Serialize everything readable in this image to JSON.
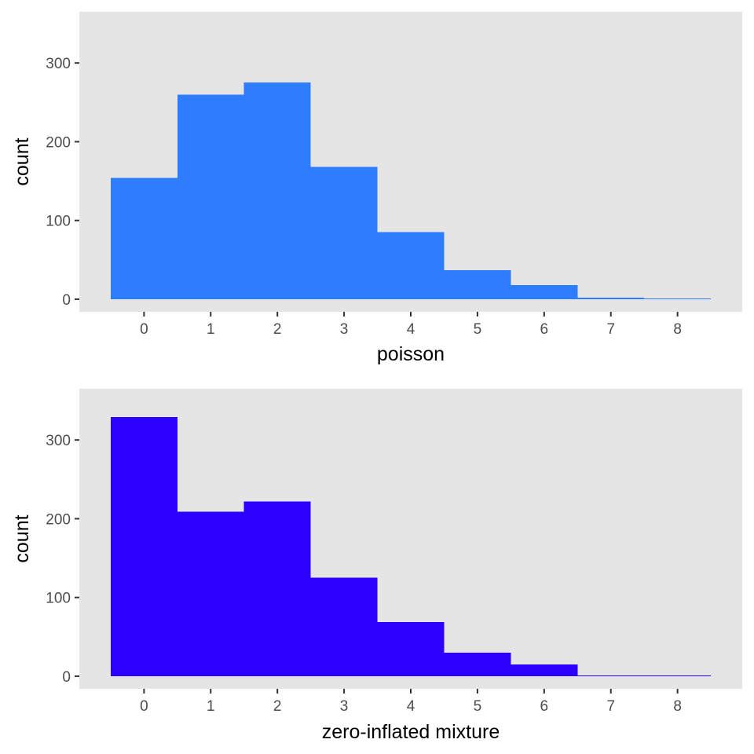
{
  "chart_data": [
    {
      "type": "bar",
      "categories": [
        "0",
        "1",
        "2",
        "3",
        "4",
        "5",
        "6",
        "7",
        "8"
      ],
      "values": [
        154,
        260,
        275,
        168,
        85,
        37,
        18,
        2,
        1
      ],
      "title": "",
      "xlabel": "poisson",
      "ylabel": "count",
      "ylim": [
        -16,
        365
      ],
      "yticks": [
        0,
        100,
        200,
        300
      ],
      "xticks": [
        "0",
        "1",
        "2",
        "3",
        "4",
        "5",
        "6",
        "7",
        "8"
      ],
      "bar_color": "#2e7dff",
      "grid": false,
      "legend": "none"
    },
    {
      "type": "bar",
      "categories": [
        "0",
        "1",
        "2",
        "3",
        "4",
        "5",
        "6",
        "7",
        "8"
      ],
      "values": [
        329,
        209,
        222,
        125,
        69,
        30,
        15,
        1,
        1
      ],
      "title": "",
      "xlabel": "zero-inflated mixture",
      "ylabel": "count",
      "ylim": [
        -16,
        365
      ],
      "yticks": [
        0,
        100,
        200,
        300
      ],
      "xticks": [
        "0",
        "1",
        "2",
        "3",
        "4",
        "5",
        "6",
        "7",
        "8"
      ],
      "bar_color": "#2b00ff",
      "grid": false,
      "legend": "none"
    }
  ],
  "colors": {
    "panel_background": "#e5e5e5",
    "tick_label": "#4d4d4d",
    "tick_mark": "#333333"
  }
}
